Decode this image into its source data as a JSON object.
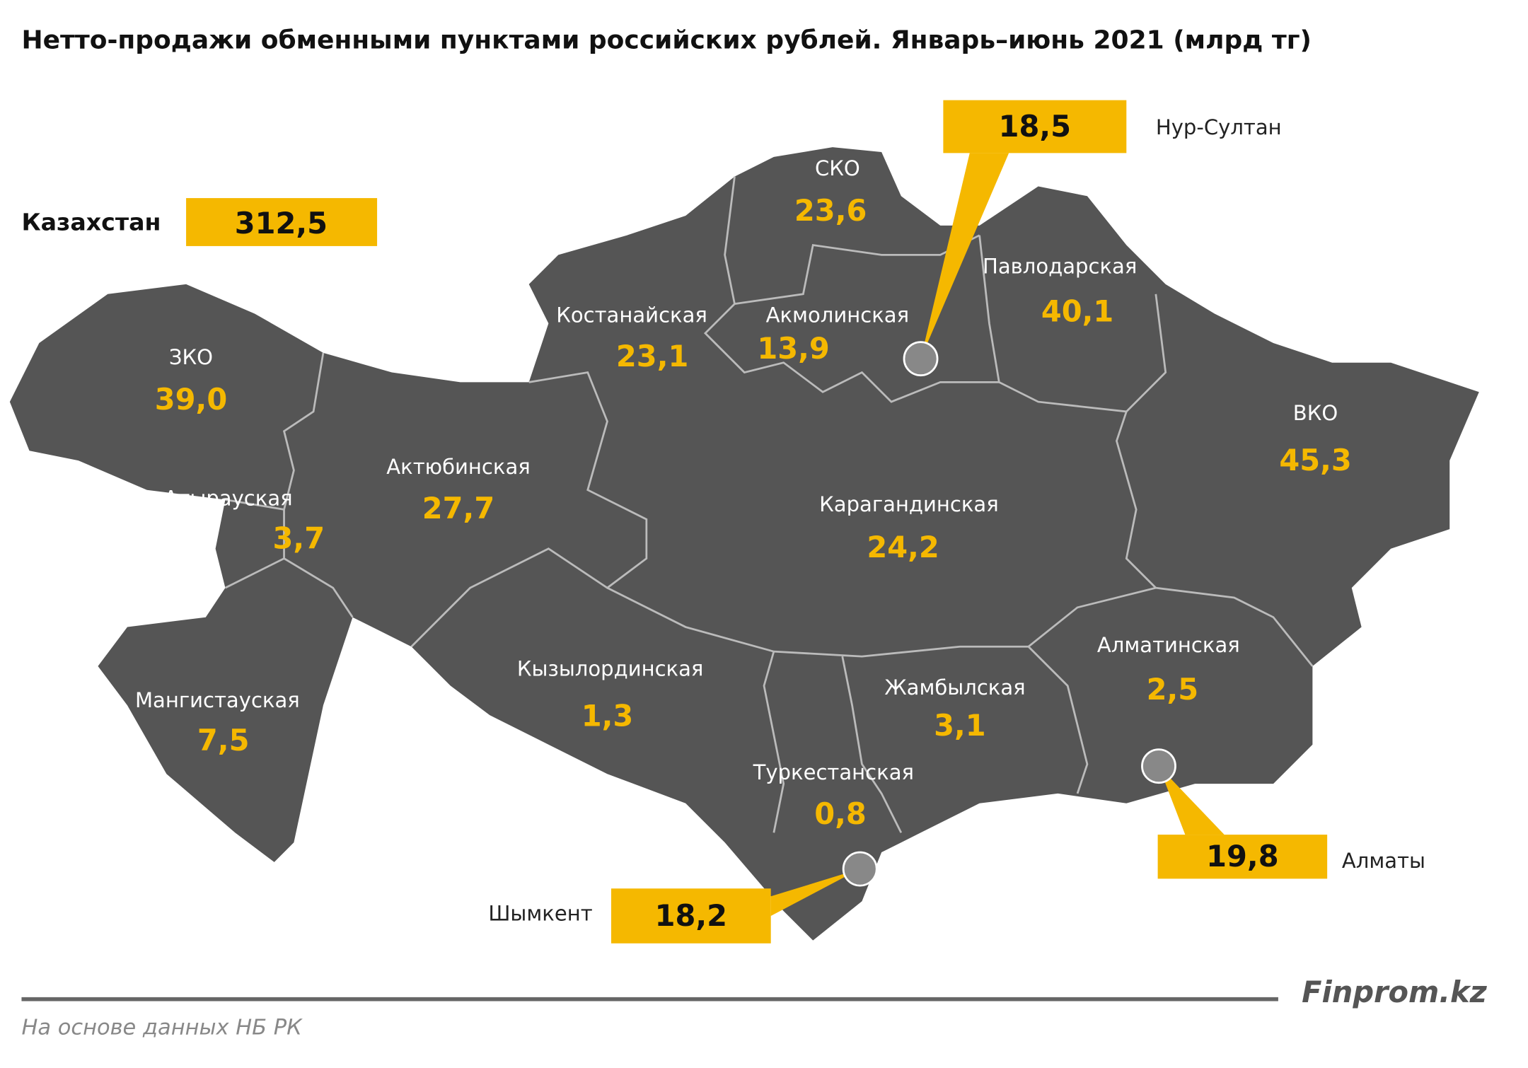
{
  "title": "Нетто-продажи обменными пунктами российских рублей. Январь–июнь 2021 (млрд тг)",
  "total": {
    "label": "Казахстан",
    "value": "312,5"
  },
  "regions": [
    {
      "name": "ЗКО",
      "value": "39,0"
    },
    {
      "name": "Атырауская",
      "value": "3,7"
    },
    {
      "name": "Актюбинская",
      "value": "27,7"
    },
    {
      "name": "Мангистауская",
      "value": "7,5"
    },
    {
      "name": "Костанайская",
      "value": "23,1"
    },
    {
      "name": "СКО",
      "value": "23,6"
    },
    {
      "name": "Акмолинская",
      "value": "13,9"
    },
    {
      "name": "Павлодарская",
      "value": "40,1"
    },
    {
      "name": "ВКО",
      "value": "45,3"
    },
    {
      "name": "Карагандинская",
      "value": "24,2"
    },
    {
      "name": "Кызылординская",
      "value": "1,3"
    },
    {
      "name": "Жамбылская",
      "value": "3,1"
    },
    {
      "name": "Алматинская",
      "value": "2,5"
    },
    {
      "name": "Туркестанская",
      "value": "0,8"
    }
  ],
  "cities": [
    {
      "name": "Нур-Султан",
      "value": "18,5"
    },
    {
      "name": "Алматы",
      "value": "19,8"
    },
    {
      "name": "Шымкент",
      "value": "18,2"
    }
  ],
  "brand": "Finprom.kz",
  "source": "На основе данных НБ РК"
}
